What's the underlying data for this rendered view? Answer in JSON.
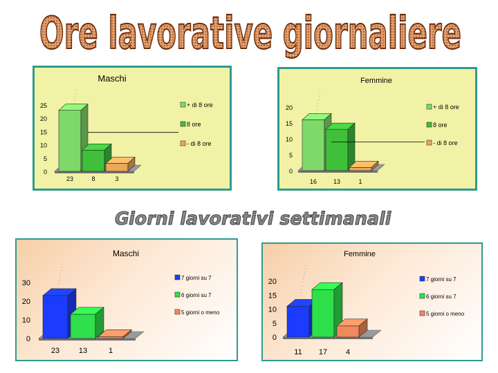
{
  "page": {
    "title": "Ore lavorative giornaliere",
    "subtitle": "Giorni lavorativi settimanali"
  },
  "chart_data": [
    {
      "type": "bar",
      "title": "Maschi",
      "categories": [
        "+ di 8 ore",
        "8 ore",
        "- di 8 ore"
      ],
      "values": [
        23,
        8,
        3
      ],
      "ylim": [
        0,
        25
      ],
      "yticks": [
        "0",
        "5",
        "10",
        "15",
        "20",
        "25"
      ],
      "legend_position": "right",
      "colors": [
        "#7fd96a",
        "#3fbf3a",
        "#e9a85a"
      ]
    },
    {
      "type": "bar",
      "title": "Femmine",
      "categories": [
        "+ di 8 ore",
        "8 ore",
        "- di 8 ore"
      ],
      "values": [
        16,
        13,
        1
      ],
      "ylim": [
        0,
        20
      ],
      "yticks": [
        "0",
        "5",
        "10",
        "15",
        "20"
      ],
      "legend_position": "right",
      "colors": [
        "#7fd96a",
        "#3fbf3a",
        "#e9a85a"
      ]
    },
    {
      "type": "bar",
      "title": "Maschi",
      "categories": [
        "7 giorni su 7",
        "6 giorni su 7",
        "5 giorni o meno"
      ],
      "values": [
        23,
        13,
        1
      ],
      "ylim": [
        0,
        30
      ],
      "yticks": [
        "0",
        "10",
        "20",
        "30"
      ],
      "legend_position": "right",
      "colors": [
        "#1b3cff",
        "#2ee04a",
        "#f08a5d"
      ]
    },
    {
      "type": "bar",
      "title": "Femmine",
      "categories": [
        "7 giorni su 7",
        "6 giorni su 7",
        "5 giorni o meno"
      ],
      "values": [
        11,
        17,
        4
      ],
      "ylim": [
        0,
        20
      ],
      "yticks": [
        "0",
        "5",
        "10",
        "15",
        "20"
      ],
      "legend_position": "right",
      "colors": [
        "#1b3cff",
        "#2ee04a",
        "#f08a5d"
      ]
    }
  ]
}
